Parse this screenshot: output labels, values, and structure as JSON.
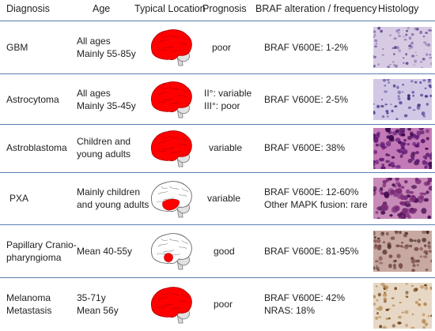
{
  "headers": {
    "diagnosis": "Diagnosis",
    "age": "Age",
    "location": "Typical Location",
    "prognosis": "Prognosis",
    "braf": "BRAF alteration / frequency",
    "histology": "Histology"
  },
  "colors": {
    "lesion": "#ff0000",
    "separator": "#5b7fae"
  },
  "rows": [
    {
      "diagnosis": [
        "GBM"
      ],
      "age": [
        "All ages",
        "Mainly 55-85y"
      ],
      "location": "whole-brain",
      "prognosis": [
        "poor"
      ],
      "braf": [
        "BRAF V600E: 1-2%"
      ],
      "histology": "gbm-histology"
    },
    {
      "diagnosis": [
        "Astrocytoma"
      ],
      "age": [
        "All ages",
        "Mainly 35-45y"
      ],
      "location": "whole-brain",
      "prognosis": [
        "II°: variable",
        "III°: poor"
      ],
      "braf": [
        "BRAF V600E: 2-5%"
      ],
      "histology": "astrocytoma-histology"
    },
    {
      "diagnosis": [
        "Astroblastoma"
      ],
      "age": [
        "Children and",
        "young adults"
      ],
      "location": "whole-brain",
      "prognosis": [
        "variable"
      ],
      "braf": [
        "BRAF V600E: 38%"
      ],
      "histology": "astroblastoma-histology"
    },
    {
      "diagnosis": [
        "PXA"
      ],
      "age": [
        "Mainly children",
        "and young adults"
      ],
      "location": "temporal-lobe",
      "prognosis": [
        "variable"
      ],
      "braf": [
        "BRAF V600E: 12-60%",
        "Other MAPK fusion: rare"
      ],
      "histology": "pxa-histology"
    },
    {
      "diagnosis": [
        "Papillary Cranio-",
        "pharyngioma"
      ],
      "age": [
        "Mean 40-55y"
      ],
      "location": "sellar-region",
      "prognosis": [
        "good"
      ],
      "braf": [
        "BRAF V600E: 81-95%"
      ],
      "histology": "craniopharyngioma-histology"
    },
    {
      "diagnosis": [
        "Melanoma",
        "Metastasis"
      ],
      "age": [
        "35-71y",
        "Mean 56y"
      ],
      "location": "whole-brain",
      "prognosis": [
        "poor"
      ],
      "braf": [
        "BRAF V600E: 42%",
        "NRAS: 18%"
      ],
      "histology": "melanoma-histology"
    }
  ]
}
